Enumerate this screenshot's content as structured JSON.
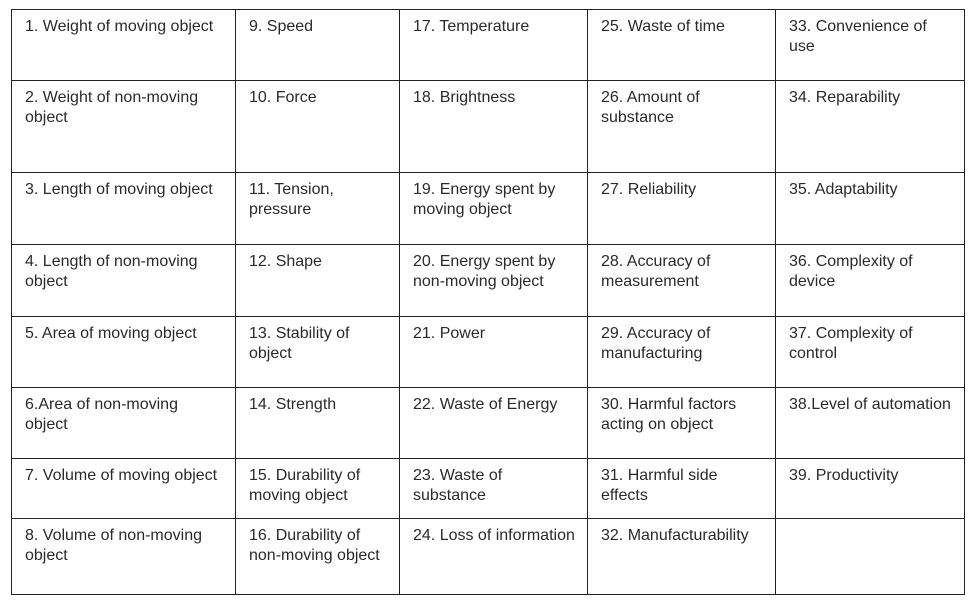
{
  "table": {
    "rows": [
      [
        "1. Weight of moving object",
        "9. Speed",
        "17. Temperature",
        "25. Waste of time",
        "33. Convenience of use"
      ],
      [
        "2. Weight of non-moving object",
        "10. Force",
        "18. Brightness",
        "26. Amount of substance",
        "34. Reparability"
      ],
      [
        "3. Length of moving object",
        "11. Tension, pressure",
        "19. Energy spent by moving object",
        "27. Reliability",
        "35. Adaptability"
      ],
      [
        "4. Length of non-moving object",
        "12. Shape",
        "20. Energy spent by non-moving object",
        "28. Accuracy of measurement",
        "36. Complexity of device"
      ],
      [
        "5. Area of moving object",
        "13. Stability of object",
        "21. Power",
        "29. Accuracy of manufacturing",
        "37. Complexity of control"
      ],
      [
        "6.Area of non-moving object",
        "14. Strength",
        "22. Waste of Energy",
        "30. Harmful factors acting on object",
        "38.Level of automation"
      ],
      [
        "7. Volume of moving object",
        "15. Durability of moving object",
        "23. Waste of substance",
        "31. Harmful side effects",
        "39. Productivity"
      ],
      [
        "8. Volume of non-moving object",
        "16. Durability of non-moving object",
        "24. Loss of information",
        "32. Manufacturability"
      ]
    ]
  }
}
